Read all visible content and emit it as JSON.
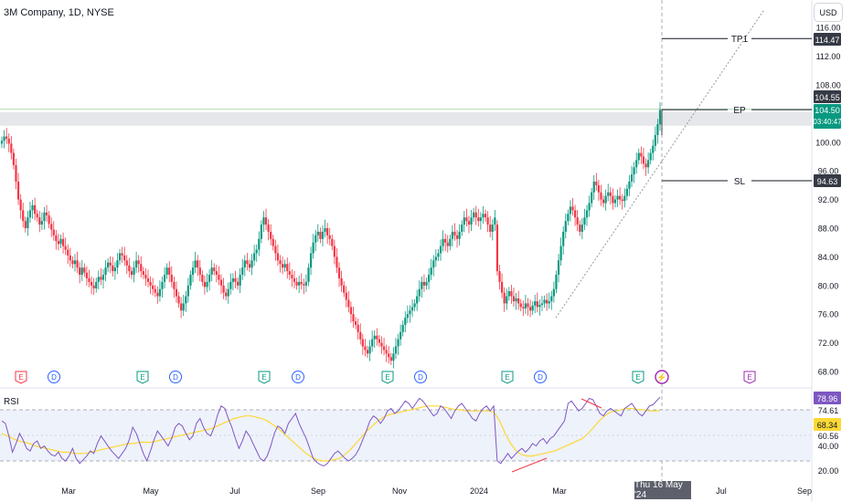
{
  "header": {
    "title": "3M Company, 1D, NYSE",
    "currency": "USD"
  },
  "rsi": {
    "label": "RSI"
  },
  "crosshair": {
    "date": "Thu 16 May '24"
  },
  "annotations": [
    {
      "label": "TP1",
      "price": 114.47,
      "color": "#131722"
    },
    {
      "label": "EP",
      "price": 104.55,
      "color": "#131722"
    },
    {
      "label": "SL",
      "price": 94.63,
      "color": "#131722"
    }
  ],
  "price_badges": {
    "last_price": "104.50",
    "countdown": "03:40:47",
    "tp1": "114.47",
    "ep": "104.55",
    "sl": "94.63"
  },
  "rsi_badges": {
    "rsi": "78.96",
    "ma": "68.34"
  },
  "events": [
    {
      "type": "E",
      "kind": "earnings",
      "color": "#f23645"
    },
    {
      "type": "D",
      "kind": "dividend",
      "color": "#2962ff"
    },
    {
      "type": "E",
      "kind": "earnings",
      "color": "#089981"
    },
    {
      "type": "D",
      "kind": "dividend",
      "color": "#2962ff"
    },
    {
      "type": "E",
      "kind": "earnings",
      "color": "#089981"
    },
    {
      "type": "D",
      "kind": "dividend",
      "color": "#2962ff"
    },
    {
      "type": "E",
      "kind": "earnings",
      "color": "#089981"
    },
    {
      "type": "D",
      "kind": "dividend",
      "color": "#2962ff"
    },
    {
      "type": "E",
      "kind": "earnings",
      "color": "#089981"
    },
    {
      "type": "D",
      "kind": "dividend",
      "color": "#2962ff"
    },
    {
      "type": "E",
      "kind": "earnings",
      "color": "#089981"
    },
    {
      "type": "⚡",
      "kind": "split",
      "color": "#9c27b0"
    },
    {
      "type": "E",
      "kind": "earnings-upcoming",
      "color": "#9c27b0"
    }
  ],
  "colors": {
    "up": "#089981",
    "down": "#f23645",
    "rsi_line": "#7e57c2",
    "rsi_ma": "#fdd835",
    "trendline": "#9598a1"
  },
  "chart_data": [
    {
      "type": "candlestick",
      "title": "3M Company, 1D, NYSE",
      "x_ticks": [
        "Mar",
        "May",
        "Jul",
        "Sep",
        "Nov",
        "2024",
        "Mar",
        "Jul",
        "Sep"
      ],
      "y_ticks": [
        116,
        112,
        108,
        104,
        100,
        96,
        92,
        88,
        84,
        80,
        76,
        72,
        68
      ],
      "ylim": [
        66,
        118
      ],
      "grid": false,
      "shaded_zone": [
        102.3,
        104.2
      ],
      "close_series": [
        100.2,
        100.8,
        100.5,
        99.8,
        98.5,
        96.8,
        94.5,
        92.0,
        90.5,
        89.0,
        88.0,
        89.5,
        90.5,
        91.2,
        90.0,
        89.5,
        88.5,
        89.0,
        90.2,
        89.8,
        88.6,
        87.8,
        87.0,
        86.2,
        85.8,
        86.5,
        85.5,
        85.0,
        84.2,
        83.5,
        83.0,
        83.5,
        82.5,
        81.5,
        82.5,
        81.8,
        81.0,
        80.5,
        80.0,
        79.6,
        80.5,
        81.2,
        80.8,
        81.5,
        82.5,
        83.2,
        82.8,
        82.0,
        82.5,
        83.5,
        84.5,
        84.2,
        83.5,
        82.8,
        82.0,
        81.5,
        82.5,
        83.5,
        83.0,
        82.0,
        81.5,
        81.0,
        80.5,
        80.0,
        79.5,
        79.0,
        78.5,
        79.5,
        80.5,
        81.5,
        82.5,
        81.5,
        80.5,
        79.5,
        78.5,
        77.5,
        76.5,
        77.5,
        78.5,
        80.0,
        81.5,
        82.5,
        83.5,
        82.5,
        81.5,
        80.5,
        79.8,
        80.5,
        81.5,
        82.5,
        82.0,
        81.5,
        80.8,
        80.0,
        79.0,
        78.5,
        79.5,
        80.5,
        81.0,
        80.5,
        80.0,
        81.5,
        82.5,
        83.5,
        83.0,
        82.5,
        83.5,
        84.5,
        85.0,
        86.5,
        88.5,
        89.5,
        88.5,
        87.5,
        86.5,
        85.5,
        84.5,
        83.5,
        83.0,
        82.5,
        83.0,
        82.0,
        81.5,
        81.0,
        80.5,
        80.0,
        80.5,
        80.2,
        80.0,
        80.5,
        82.5,
        84.5,
        86.0,
        87.0,
        87.5,
        86.5,
        87.5,
        88.0,
        87.0,
        86.5,
        85.5,
        84.0,
        82.5,
        81.0,
        80.0,
        79.0,
        78.0,
        77.0,
        76.0,
        75.0,
        74.5,
        73.5,
        72.5,
        71.5,
        71.0,
        70.5,
        71.5,
        72.5,
        73.0,
        72.5,
        72.0,
        71.5,
        71.0,
        70.5,
        70.0,
        69.5,
        70.5,
        71.5,
        72.5,
        73.5,
        74.5,
        75.5,
        76.0,
        76.5,
        77.0,
        77.5,
        78.5,
        79.5,
        80.5,
        80.0,
        80.5,
        81.5,
        82.5,
        83.5,
        84.0,
        84.5,
        85.5,
        86.5,
        86.0,
        85.5,
        86.5,
        87.5,
        87.0,
        86.5,
        87.5,
        88.5,
        89.5,
        89.0,
        88.5,
        89.5,
        90.2,
        89.5,
        89.0,
        89.5,
        90.0,
        89.5,
        88.5,
        87.5,
        88.5,
        89.5,
        82.0,
        80.5,
        79.0,
        77.5,
        78.5,
        79.2,
        78.5,
        77.8,
        78.2,
        77.5,
        77.0,
        76.8,
        77.5,
        77.0,
        76.5,
        77.2,
        77.8,
        77.0,
        77.3,
        77.5,
        78.0,
        77.5,
        77.8,
        78.5,
        79.5,
        81.5,
        83.5,
        85.5,
        87.5,
        89.0,
        90.0,
        91.0,
        90.5,
        89.5,
        88.5,
        87.5,
        88.5,
        89.5,
        90.5,
        91.5,
        93.0,
        94.5,
        94.0,
        93.0,
        92.0,
        91.5,
        92.5,
        93.0,
        92.5,
        91.5,
        92.0,
        92.5,
        92.0,
        91.8,
        92.5,
        93.5,
        94.5,
        95.5,
        96.5,
        97.5,
        98.5,
        98.0,
        97.0,
        96.5,
        97.5,
        98.5,
        99.5,
        101.0,
        102.5,
        104.5
      ],
      "trendline": {
        "from": [
          75.5
        ],
        "to": [
          118.5
        ],
        "style": "dotted"
      }
    },
    {
      "type": "line",
      "title": "RSI",
      "y_ticks": [
        74.61,
        60.56,
        40.0,
        20.0
      ],
      "ylim": [
        15,
        85
      ],
      "levels": [
        70,
        30
      ],
      "series": [
        {
          "name": "RSI",
          "values": [
            60,
            58,
            48,
            35,
            42,
            50,
            45,
            38,
            36,
            42,
            44,
            38,
            40,
            36,
            33,
            32,
            35,
            30,
            28,
            32,
            38,
            30,
            26,
            29,
            32,
            36,
            34,
            42,
            48,
            44,
            40,
            36,
            33,
            30,
            34,
            38,
            45,
            55,
            50,
            42,
            34,
            28,
            36,
            45,
            52,
            48,
            44,
            40,
            46,
            55,
            58,
            56,
            50,
            45,
            48,
            58,
            62,
            55,
            50,
            48,
            55,
            65,
            72,
            70,
            62,
            55,
            46,
            38,
            44,
            52,
            48,
            42,
            36,
            30,
            28,
            32,
            40,
            50,
            56,
            54,
            50,
            58,
            62,
            66,
            58,
            52,
            46,
            38,
            30,
            27,
            25,
            24,
            26,
            30,
            34,
            36,
            33,
            30,
            28,
            30,
            33,
            38,
            45,
            52,
            60,
            64,
            62,
            58,
            62,
            68,
            70,
            66,
            68,
            72,
            76,
            74,
            70,
            74,
            78,
            76,
            72,
            68,
            64,
            66,
            72,
            70,
            66,
            62,
            68,
            72,
            74,
            70,
            66,
            62,
            60,
            66,
            70,
            72,
            68,
            72,
            28,
            26,
            30,
            34,
            30,
            33,
            36,
            38,
            35,
            38,
            42,
            40,
            44,
            46,
            42,
            46,
            48,
            52,
            56,
            60,
            74,
            76,
            72,
            68,
            70,
            74,
            78,
            77,
            72,
            66,
            64,
            68,
            70,
            68,
            66,
            64,
            70,
            72,
            74,
            70,
            66,
            64,
            68,
            72,
            73,
            76,
            78.96
          ]
        },
        {
          "name": "MA",
          "values": [
            50,
            48,
            46,
            44,
            43,
            42,
            40,
            39,
            38,
            37,
            36,
            35,
            35,
            34,
            34,
            34,
            35,
            36,
            37,
            38,
            39,
            40,
            41,
            42,
            42,
            43,
            43,
            43,
            44,
            45,
            46,
            47,
            48,
            49,
            50,
            51,
            52,
            53,
            54,
            56,
            58,
            60,
            62,
            63,
            64,
            64,
            63,
            62,
            60,
            57,
            54,
            50,
            46,
            42,
            38,
            34,
            31,
            29,
            28,
            28,
            29,
            30,
            33,
            37,
            42,
            47,
            52,
            56,
            60,
            63,
            65,
            66,
            67,
            68,
            69,
            70,
            71,
            72,
            72,
            72,
            71,
            70,
            69,
            69,
            68,
            68,
            68,
            68,
            68,
            67,
            60,
            50,
            42,
            36,
            33,
            32,
            32,
            33,
            34,
            35,
            36,
            38,
            40,
            42,
            44,
            46,
            50,
            55,
            60,
            64,
            67,
            68,
            69,
            70,
            70,
            69,
            69,
            68,
            68,
            68.34
          ]
        }
      ]
    }
  ]
}
